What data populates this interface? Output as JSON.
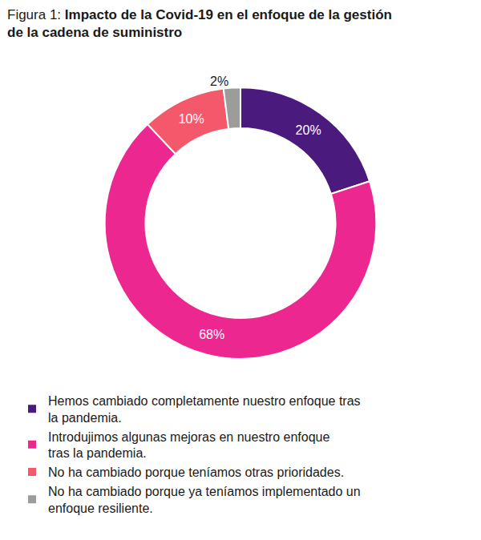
{
  "chart_data": {
    "type": "pie",
    "title": "Figura 1: Impacto de la Covid-19 en el enfoque de la gestión de la cadena de suministro",
    "categories": [
      "Hemos cambiado completamente nuestro enfoque tras la pandemia.",
      "Introdujimos algunas mejoras en nuestro enfoque tras la pandemia.",
      "No ha cambiado porque teníamos otras prioridades.",
      "No ha cambiado porque ya teníamos implementado un enfoque resiliente."
    ],
    "values": [
      20,
      68,
      10,
      2
    ],
    "value_labels": [
      "20%",
      "68%",
      "10%",
      "2%"
    ],
    "colors": [
      "#4b1a7d",
      "#ec2890",
      "#f4596b",
      "#9c9c9c"
    ],
    "data_labels": true,
    "legend": "bottom"
  }
}
